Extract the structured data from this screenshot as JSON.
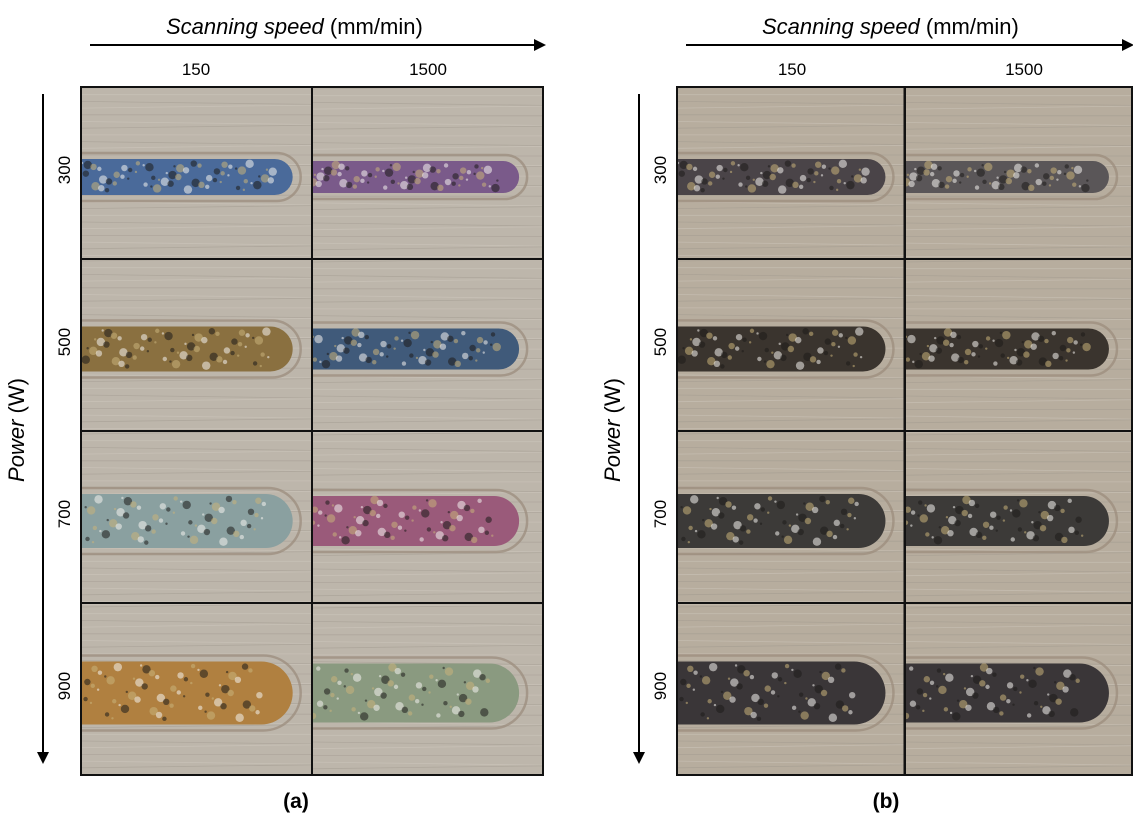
{
  "axis": {
    "speed_title_italic": "Scanning speed",
    "speed_title_unit": " (mm/min)",
    "power_title_italic": "Power",
    "power_title_unit": " (W)"
  },
  "columns": [
    "150",
    "1500"
  ],
  "rows": [
    "300",
    "500",
    "700",
    "900"
  ],
  "panels": [
    {
      "id": "a",
      "label": "(a)",
      "tracks": [
        [
          "#4a6a9a",
          "#7a5a8a"
        ],
        [
          "#8a7040",
          "#405a7a"
        ],
        [
          "#8aa0a0",
          "#9a5a7a"
        ],
        [
          "#b08040",
          "#8a9a80"
        ]
      ]
    },
    {
      "id": "b",
      "label": "(b)",
      "tracks": [
        [
          "#4a4448",
          "#5a5658"
        ],
        [
          "#3a342e",
          "#3a342e"
        ],
        [
          "#3c3a38",
          "#3c3a38"
        ],
        [
          "#3a3638",
          "#3a3638"
        ]
      ]
    }
  ],
  "colors": {
    "substrate_a": "#bdb6ab",
    "substrate_b": "#b7ad9e",
    "rim": "#9a8a7a"
  }
}
